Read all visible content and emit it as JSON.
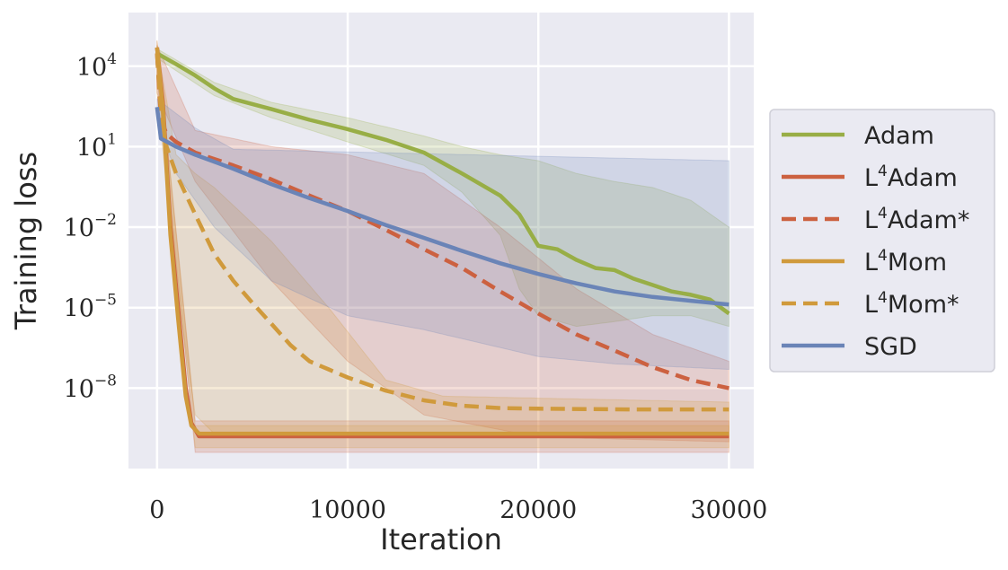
{
  "chart_data": {
    "type": "line",
    "xlabel": "Iteration",
    "ylabel": "Training loss",
    "xlim": [
      -1500,
      31300
    ],
    "ylim": [
      1e-11,
      1000000.0
    ],
    "yscale": "log",
    "grid": true,
    "legend_position": "right",
    "xticks": [
      {
        "value": 0,
        "label": "0"
      },
      {
        "value": 10000,
        "label": "10000"
      },
      {
        "value": 20000,
        "label": "20000"
      },
      {
        "value": 30000,
        "label": "30000"
      }
    ],
    "yticks": [
      {
        "value": 10000,
        "base": "10",
        "exp": "4"
      },
      {
        "value": 10,
        "base": "10",
        "exp": "1"
      },
      {
        "value": 0.01,
        "base": "10",
        "exp": "−2"
      },
      {
        "value": 1e-05,
        "base": "10",
        "exp": "−5"
      },
      {
        "value": 1e-08,
        "base": "10",
        "exp": "−8"
      }
    ],
    "series": [
      {
        "name": "Adam",
        "name_main": "Adam",
        "name_sup": "",
        "name_suffix": "",
        "color": "#98ae46",
        "dash": false,
        "points": [
          [
            0,
            30000
          ],
          [
            1000,
            12000
          ],
          [
            2000,
            4500
          ],
          [
            3000,
            1500
          ],
          [
            4000,
            600
          ],
          [
            6000,
            250
          ],
          [
            8000,
            100
          ],
          [
            10000,
            45
          ],
          [
            12000,
            18
          ],
          [
            14000,
            6
          ],
          [
            16000,
            1
          ],
          [
            18000,
            0.15
          ],
          [
            19000,
            0.03
          ],
          [
            20000,
            0.002
          ],
          [
            21000,
            0.0015
          ],
          [
            22000,
            0.0006
          ],
          [
            23000,
            0.0003
          ],
          [
            24000,
            0.00025
          ],
          [
            25000,
            0.00012
          ],
          [
            26000,
            7e-05
          ],
          [
            27000,
            4e-05
          ],
          [
            28000,
            3e-05
          ],
          [
            29000,
            2e-05
          ],
          [
            30000,
            6e-06
          ]
        ],
        "lower": [
          [
            0,
            20000
          ],
          [
            3000,
            800
          ],
          [
            6000,
            120
          ],
          [
            10000,
            15
          ],
          [
            14000,
            2
          ],
          [
            16000,
            0.2
          ],
          [
            18000,
            0.005
          ],
          [
            19000,
            5e-05
          ],
          [
            20000,
            5e-06
          ],
          [
            22000,
            2e-06
          ],
          [
            24000,
            3e-06
          ],
          [
            26000,
            5e-06
          ],
          [
            28000,
            5e-06
          ],
          [
            30000,
            2e-06
          ]
        ],
        "upper": [
          [
            0,
            45000
          ],
          [
            3000,
            2500
          ],
          [
            6000,
            450
          ],
          [
            10000,
            120
          ],
          [
            14000,
            25
          ],
          [
            16000,
            10
          ],
          [
            18000,
            5
          ],
          [
            20000,
            3
          ],
          [
            22000,
            1
          ],
          [
            24000,
            0.5
          ],
          [
            26000,
            0.3
          ],
          [
            28000,
            0.1
          ],
          [
            30000,
            0.01
          ]
        ]
      },
      {
        "name": "L⁴Adam",
        "name_main": "L",
        "name_sup": "4",
        "name_suffix": "Adam",
        "color": "#cc6140",
        "dash": false,
        "points": [
          [
            0,
            50000
          ],
          [
            300,
            500
          ],
          [
            700,
            0.01
          ],
          [
            1100,
            1e-05
          ],
          [
            1500,
            1e-08
          ],
          [
            1800,
            5e-10
          ],
          [
            2200,
            1.6e-10
          ],
          [
            3000,
            1.6e-10
          ],
          [
            30000,
            1.6e-10
          ]
        ],
        "lower": [
          [
            0,
            5000
          ],
          [
            2000,
            4e-11
          ],
          [
            30000,
            4e-11
          ]
        ],
        "upper": [
          [
            0,
            90000
          ],
          [
            2000,
            6e-10
          ],
          [
            30000,
            6e-10
          ]
        ]
      },
      {
        "name": "L⁴Adam*",
        "name_main": "L",
        "name_sup": "4",
        "name_suffix": "Adam*",
        "color": "#cc6140",
        "dash": true,
        "points": [
          [
            0,
            30000
          ],
          [
            200,
            100
          ],
          [
            500,
            30
          ],
          [
            1000,
            15
          ],
          [
            2000,
            6
          ],
          [
            4000,
            2
          ],
          [
            6000,
            0.6
          ],
          [
            8000,
            0.15
          ],
          [
            10000,
            0.04
          ],
          [
            12000,
            0.008
          ],
          [
            14000,
            0.0015
          ],
          [
            16000,
            0.0003
          ],
          [
            18000,
            4e-05
          ],
          [
            20000,
            6e-06
          ],
          [
            22000,
            1e-06
          ],
          [
            24000,
            2.5e-07
          ],
          [
            26000,
            6e-08
          ],
          [
            28000,
            2e-08
          ],
          [
            30000,
            1e-08
          ]
        ],
        "lower": [
          [
            0,
            1000
          ],
          [
            2000,
            0.5
          ],
          [
            6000,
            0.0001
          ],
          [
            10000,
            1e-07
          ],
          [
            14000,
            1e-09
          ],
          [
            20000,
            1.5e-10
          ],
          [
            30000,
            1e-10
          ]
        ],
        "upper": [
          [
            0,
            60000
          ],
          [
            2000,
            40
          ],
          [
            6000,
            10
          ],
          [
            10000,
            5
          ],
          [
            14000,
            1
          ],
          [
            18000,
            0.01
          ],
          [
            22000,
            5e-05
          ],
          [
            26000,
            1e-06
          ],
          [
            30000,
            1e-07
          ]
        ]
      },
      {
        "name": "L⁴Mom",
        "name_main": "L",
        "name_sup": "4",
        "name_suffix": "Mom",
        "color": "#d09a3c",
        "dash": false,
        "points": [
          [
            0,
            50000
          ],
          [
            300,
            300
          ],
          [
            700,
            0.005
          ],
          [
            1100,
            4e-06
          ],
          [
            1500,
            5e-09
          ],
          [
            1800,
            4e-10
          ],
          [
            2200,
            2e-10
          ],
          [
            3000,
            2e-10
          ],
          [
            30000,
            2e-10
          ]
        ],
        "lower": [
          [
            0,
            5000
          ],
          [
            2000,
            6e-11
          ],
          [
            30000,
            6e-11
          ]
        ],
        "upper": [
          [
            0,
            90000
          ],
          [
            2000,
            4e-10
          ],
          [
            30000,
            4e-10
          ]
        ]
      },
      {
        "name": "L⁴Mom*",
        "name_main": "L",
        "name_sup": "4",
        "name_suffix": "Mom*",
        "color": "#d09a3c",
        "dash": true,
        "points": [
          [
            0,
            30000
          ],
          [
            200,
            200
          ],
          [
            500,
            10
          ],
          [
            1000,
            1
          ],
          [
            2000,
            0.03
          ],
          [
            3000,
            0.001
          ],
          [
            4000,
            0.0001
          ],
          [
            5000,
            1.5e-05
          ],
          [
            6000,
            2.5e-06
          ],
          [
            7000,
            4e-07
          ],
          [
            8000,
            1e-07
          ],
          [
            9000,
            5e-08
          ],
          [
            10000,
            2.5e-08
          ],
          [
            12000,
            8e-09
          ],
          [
            14000,
            3.5e-09
          ],
          [
            16000,
            2.2e-09
          ],
          [
            18000,
            1.8e-09
          ],
          [
            20000,
            1.7e-09
          ],
          [
            25000,
            1.6e-09
          ],
          [
            30000,
            1.6e-09
          ]
        ],
        "lower": [
          [
            0,
            1000
          ],
          [
            1000,
            0.0001
          ],
          [
            2000,
            1e-09
          ],
          [
            3000,
            2e-10
          ],
          [
            30000,
            1.5e-10
          ]
        ],
        "upper": [
          [
            0,
            60000
          ],
          [
            1000,
            5
          ],
          [
            2000,
            1
          ],
          [
            3000,
            0.3
          ],
          [
            6000,
            0.003
          ],
          [
            9000,
            1e-05
          ],
          [
            12000,
            2e-08
          ],
          [
            15000,
            5e-09
          ],
          [
            30000,
            3e-09
          ]
        ]
      },
      {
        "name": "SGD",
        "name_main": "SGD",
        "name_sup": "",
        "name_suffix": "",
        "color": "#6a84b7",
        "dash": false,
        "points": [
          [
            0,
            300
          ],
          [
            200,
            20
          ],
          [
            1000,
            10
          ],
          [
            2000,
            5
          ],
          [
            4000,
            1.5
          ],
          [
            6000,
            0.4
          ],
          [
            8000,
            0.12
          ],
          [
            10000,
            0.04
          ],
          [
            12000,
            0.012
          ],
          [
            14000,
            0.004
          ],
          [
            16000,
            0.0013
          ],
          [
            18000,
            0.00045
          ],
          [
            20000,
            0.00018
          ],
          [
            22000,
            8e-05
          ],
          [
            24000,
            4e-05
          ],
          [
            26000,
            2.5e-05
          ],
          [
            28000,
            1.8e-05
          ],
          [
            30000,
            1.3e-05
          ]
        ],
        "lower": [
          [
            0,
            100
          ],
          [
            1000,
            1
          ],
          [
            3000,
            0.01
          ],
          [
            6000,
            0.0001
          ],
          [
            10000,
            5e-06
          ],
          [
            14000,
            1.5e-06
          ],
          [
            20000,
            1.5e-07
          ],
          [
            24000,
            8e-08
          ],
          [
            30000,
            5e-08
          ]
        ],
        "upper": [
          [
            0,
            600
          ],
          [
            2000,
            50
          ],
          [
            4000,
            8
          ],
          [
            30000,
            3
          ]
        ]
      }
    ]
  }
}
